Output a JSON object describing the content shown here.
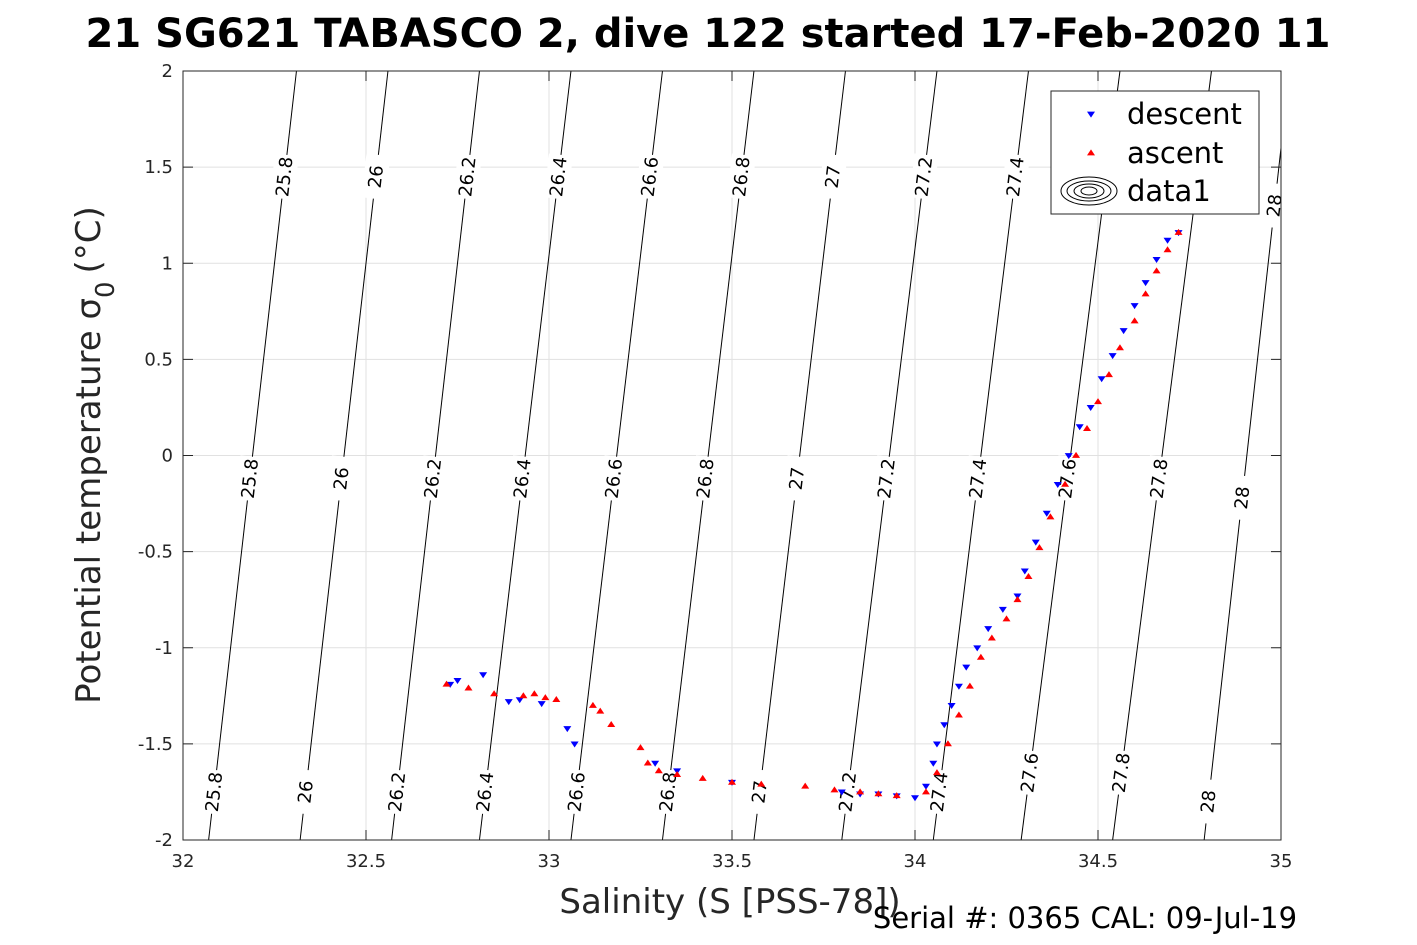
{
  "chart_data": {
    "type": "scatter",
    "title": "21 SG621 TABASCO 2, dive 122 started 17-Feb-2020 11",
    "xlabel": "Salinity (S [PSS-78])",
    "ylabel_main": "Potential temperature σ",
    "ylabel_sub": "0",
    "ylabel_unit": "(°C)",
    "footer": "Serial #: 0365  CAL: 09-Jul-19",
    "xlim": [
      32,
      35
    ],
    "ylim": [
      -2,
      2
    ],
    "x_ticks": [
      {
        "v": 32,
        "label": "32"
      },
      {
        "v": 32.5,
        "label": "32.5"
      },
      {
        "v": 33,
        "label": "33"
      },
      {
        "v": 33.5,
        "label": "33.5"
      },
      {
        "v": 34,
        "label": "34"
      },
      {
        "v": 34.5,
        "label": "34.5"
      },
      {
        "v": 35,
        "label": "35"
      }
    ],
    "y_ticks": [
      {
        "v": -2,
        "label": "-2"
      },
      {
        "v": -1.5,
        "label": "-1.5"
      },
      {
        "v": -1,
        "label": "-1"
      },
      {
        "v": -0.5,
        "label": "-0.5"
      },
      {
        "v": 0,
        "label": "0"
      },
      {
        "v": 0.5,
        "label": "0.5"
      },
      {
        "v": 1,
        "label": "1"
      },
      {
        "v": 1.5,
        "label": "1.5"
      },
      {
        "v": 2,
        "label": "2"
      }
    ],
    "grid": true,
    "legend": {
      "position": "top-right",
      "entries": [
        {
          "label": "descent",
          "color": "#0000ff",
          "marker": "triangle-down"
        },
        {
          "label": "ascent",
          "color": "#ff0000",
          "marker": "triangle-up"
        },
        {
          "label": "data1",
          "color": "#000000",
          "marker": "contour"
        }
      ]
    },
    "isopycnals": [
      {
        "label": "25.8",
        "s_bottom": 32.07,
        "s_top": 32.31,
        "labels_at_t": [
          -1.75,
          -0.12,
          1.45
        ]
      },
      {
        "label": "26",
        "s_bottom": 32.32,
        "s_top": 32.56,
        "labels_at_t": [
          -1.75,
          -0.12,
          1.45
        ]
      },
      {
        "label": "26.2",
        "s_bottom": 32.57,
        "s_top": 32.81,
        "labels_at_t": [
          -1.75,
          -0.12,
          1.45
        ]
      },
      {
        "label": "26.4",
        "s_bottom": 32.81,
        "s_top": 33.06,
        "labels_at_t": [
          -1.75,
          -0.12,
          1.45
        ]
      },
      {
        "label": "26.6",
        "s_bottom": 33.06,
        "s_top": 33.31,
        "labels_at_t": [
          -1.75,
          -0.12,
          1.45
        ]
      },
      {
        "label": "26.8",
        "s_bottom": 33.31,
        "s_top": 33.56,
        "labels_at_t": [
          -1.75,
          -0.12,
          1.45
        ]
      },
      {
        "label": "27",
        "s_bottom": 33.56,
        "s_top": 33.81,
        "labels_at_t": [
          -1.75,
          -0.12,
          1.45
        ]
      },
      {
        "label": "27.2",
        "s_bottom": 33.8,
        "s_top": 34.06,
        "labels_at_t": [
          -1.75,
          -0.12,
          1.45
        ]
      },
      {
        "label": "27.4",
        "s_bottom": 34.05,
        "s_top": 34.31,
        "labels_at_t": [
          -1.75,
          -0.12,
          1.45
        ]
      },
      {
        "label": "27.6",
        "s_bottom": 34.29,
        "s_top": 34.56,
        "labels_at_t": [
          -1.65,
          -0.12
        ]
      },
      {
        "label": "27.8",
        "s_bottom": 34.54,
        "s_top": 34.81,
        "labels_at_t": [
          -1.65,
          -0.12
        ]
      },
      {
        "label": "28",
        "s_bottom": 34.79,
        "s_top": 35.0,
        "t_top": 1.6,
        "labels_at_t": [
          -1.8,
          -0.22,
          1.3
        ]
      }
    ],
    "series": [
      {
        "name": "descent",
        "color": "#0000ff",
        "marker": "triangle-down",
        "points": [
          [
            32.75,
            -1.17
          ],
          [
            32.82,
            -1.14
          ],
          [
            32.73,
            -1.19
          ],
          [
            32.89,
            -1.28
          ],
          [
            32.92,
            -1.27
          ],
          [
            32.98,
            -1.29
          ],
          [
            33.05,
            -1.42
          ],
          [
            33.07,
            -1.5
          ],
          [
            33.29,
            -1.6
          ],
          [
            33.35,
            -1.64
          ],
          [
            33.5,
            -1.7
          ],
          [
            33.8,
            -1.75
          ],
          [
            33.85,
            -1.76
          ],
          [
            33.9,
            -1.76
          ],
          [
            33.95,
            -1.77
          ],
          [
            34.0,
            -1.78
          ],
          [
            34.03,
            -1.72
          ],
          [
            34.05,
            -1.6
          ],
          [
            34.06,
            -1.5
          ],
          [
            34.08,
            -1.4
          ],
          [
            34.1,
            -1.3
          ],
          [
            34.12,
            -1.2
          ],
          [
            34.14,
            -1.1
          ],
          [
            34.17,
            -1.0
          ],
          [
            34.2,
            -0.9
          ],
          [
            34.24,
            -0.8
          ],
          [
            34.28,
            -0.73
          ],
          [
            34.3,
            -0.6
          ],
          [
            34.33,
            -0.45
          ],
          [
            34.36,
            -0.3
          ],
          [
            34.39,
            -0.15
          ],
          [
            34.42,
            0.0
          ],
          [
            34.45,
            0.15
          ],
          [
            34.48,
            0.25
          ],
          [
            34.51,
            0.4
          ],
          [
            34.54,
            0.52
          ],
          [
            34.57,
            0.65
          ],
          [
            34.6,
            0.78
          ],
          [
            34.63,
            0.9
          ],
          [
            34.66,
            1.02
          ],
          [
            34.69,
            1.12
          ],
          [
            34.72,
            1.16
          ]
        ]
      },
      {
        "name": "ascent",
        "color": "#ff0000",
        "marker": "triangle-up",
        "points": [
          [
            32.72,
            -1.19
          ],
          [
            32.78,
            -1.21
          ],
          [
            32.85,
            -1.24
          ],
          [
            32.93,
            -1.25
          ],
          [
            32.96,
            -1.24
          ],
          [
            32.99,
            -1.26
          ],
          [
            33.02,
            -1.27
          ],
          [
            33.12,
            -1.3
          ],
          [
            33.14,
            -1.33
          ],
          [
            33.17,
            -1.4
          ],
          [
            33.25,
            -1.52
          ],
          [
            33.27,
            -1.6
          ],
          [
            33.3,
            -1.64
          ],
          [
            33.35,
            -1.66
          ],
          [
            33.42,
            -1.68
          ],
          [
            33.5,
            -1.7
          ],
          [
            33.58,
            -1.71
          ],
          [
            33.7,
            -1.72
          ],
          [
            33.78,
            -1.74
          ],
          [
            33.85,
            -1.75
          ],
          [
            33.9,
            -1.76
          ],
          [
            33.95,
            -1.77
          ],
          [
            34.03,
            -1.75
          ],
          [
            34.06,
            -1.65
          ],
          [
            34.09,
            -1.5
          ],
          [
            34.12,
            -1.35
          ],
          [
            34.15,
            -1.2
          ],
          [
            34.18,
            -1.05
          ],
          [
            34.21,
            -0.95
          ],
          [
            34.25,
            -0.85
          ],
          [
            34.28,
            -0.75
          ],
          [
            34.31,
            -0.63
          ],
          [
            34.34,
            -0.48
          ],
          [
            34.37,
            -0.32
          ],
          [
            34.41,
            -0.15
          ],
          [
            34.44,
            0.0
          ],
          [
            34.47,
            0.14
          ],
          [
            34.5,
            0.28
          ],
          [
            34.53,
            0.42
          ],
          [
            34.56,
            0.56
          ],
          [
            34.6,
            0.7
          ],
          [
            34.63,
            0.84
          ],
          [
            34.66,
            0.96
          ],
          [
            34.69,
            1.07
          ],
          [
            34.72,
            1.16
          ]
        ]
      }
    ]
  }
}
